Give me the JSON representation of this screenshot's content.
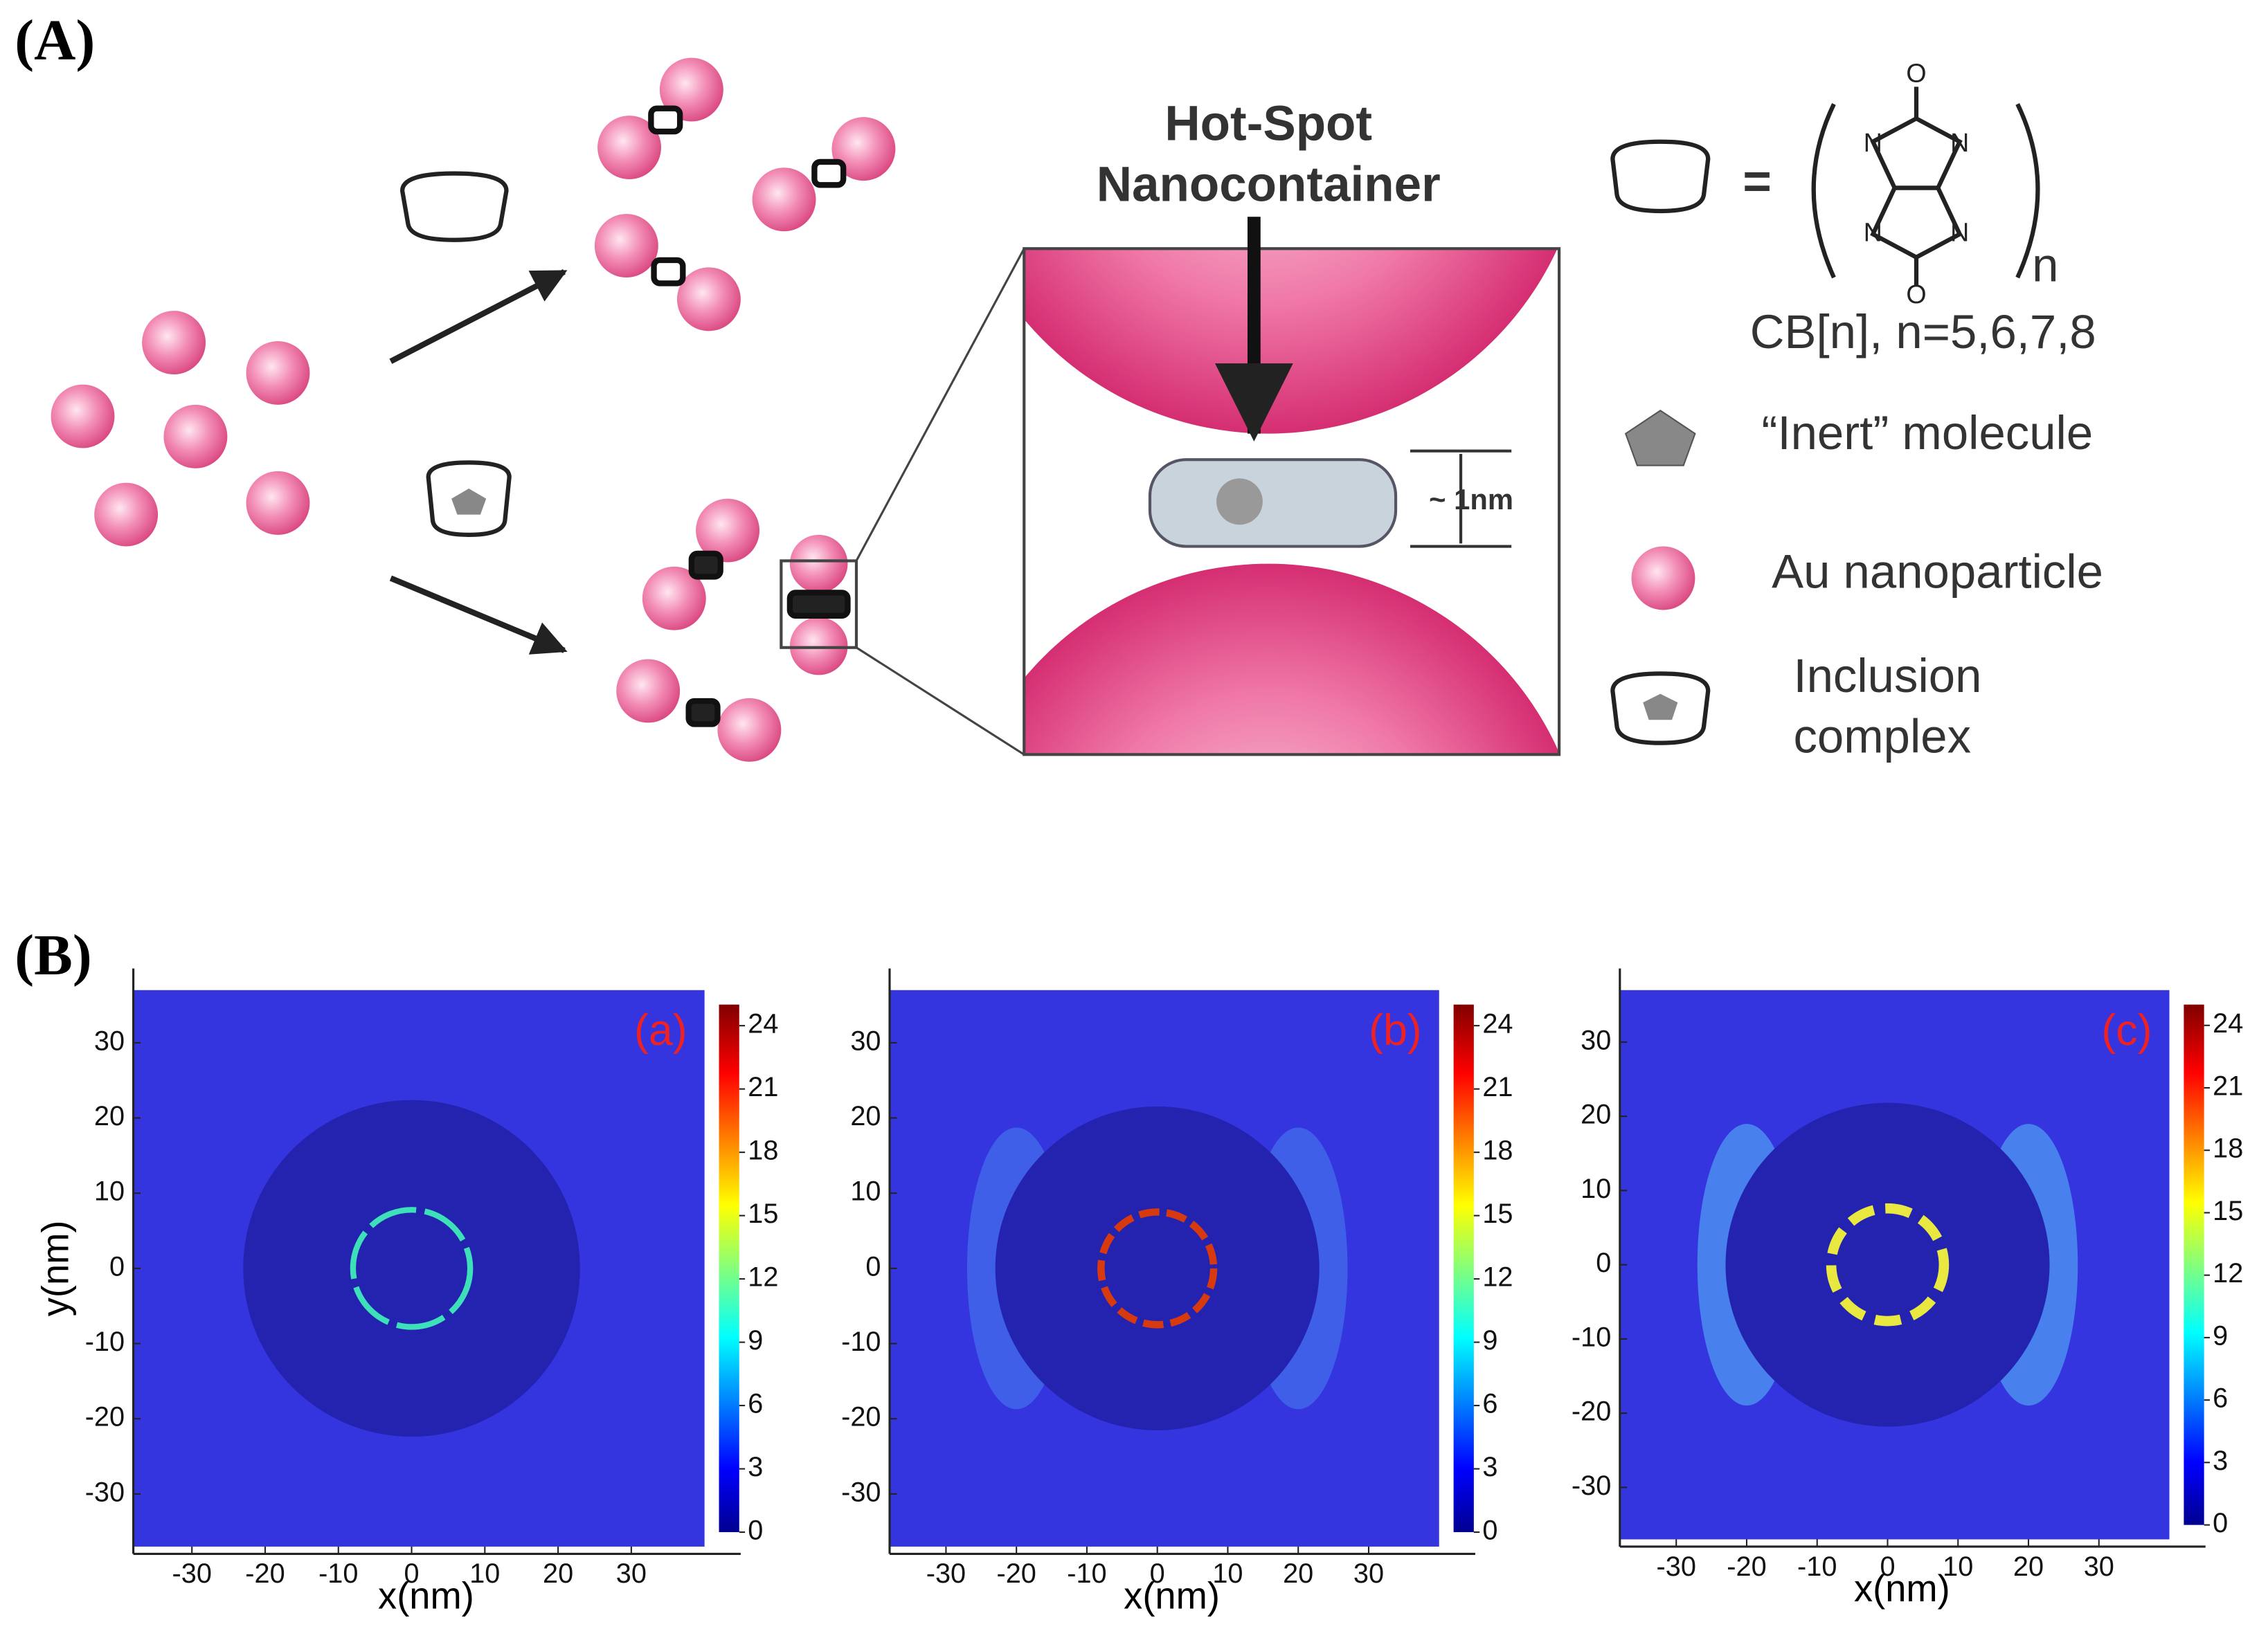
{
  "panel_a": {
    "label": "(A)",
    "hotspot_title": [
      "Hot-Spot",
      "Nanocontainer"
    ],
    "gap_label": "~ 1nm",
    "formula": {
      "equals": "=",
      "atom_n": "N",
      "atom_o": "O",
      "subscript": "n",
      "caption": "CB[n], n=5,6,7,8"
    },
    "legend": [
      {
        "label": [
          "“Inert” molecule"
        ]
      },
      {
        "label": [
          "Au nanoparticle"
        ]
      },
      {
        "label": [
          "Inclusion",
          "complex"
        ]
      }
    ]
  },
  "panel_b": {
    "label": "(B)",
    "x_label": "x(nm)",
    "y_label": "y(nm)",
    "xlim": [
      -38,
      40
    ],
    "ylim": [
      -37,
      37
    ],
    "xticks": [
      -30,
      -20,
      -10,
      0,
      10,
      20,
      30
    ],
    "yticks": [
      -30,
      -20,
      -10,
      0,
      10,
      20,
      30
    ],
    "clim": [
      0,
      25
    ],
    "cticks": [
      0,
      3,
      6,
      9,
      12,
      15,
      18,
      21,
      24
    ],
    "plots": [
      {
        "tag": "(a)"
      },
      {
        "tag": "(b)"
      },
      {
        "tag": "(c)"
      }
    ]
  }
}
